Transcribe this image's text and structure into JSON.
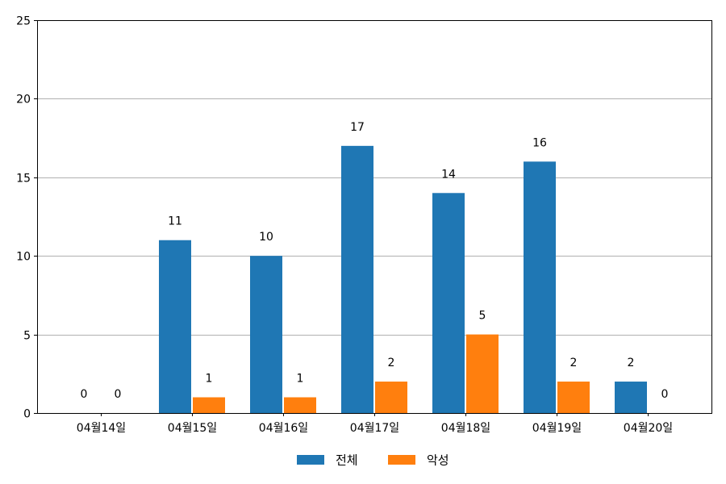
{
  "chart_data": {
    "type": "bar",
    "title": "",
    "xlabel": "",
    "ylabel": "",
    "categories": [
      "04월14일",
      "04월15일",
      "04월16일",
      "04월17일",
      "04월18일",
      "04월19일",
      "04월20일"
    ],
    "series": [
      {
        "name": "전체",
        "color": "#1f77b4",
        "values": [
          0,
          11,
          10,
          17,
          14,
          16,
          2
        ]
      },
      {
        "name": "악성",
        "color": "#ff7f0e",
        "values": [
          0,
          1,
          1,
          2,
          5,
          2,
          0
        ]
      }
    ],
    "ylim": [
      0,
      25
    ],
    "yticks": [
      0,
      5,
      10,
      15,
      20,
      25
    ],
    "grid": "horizontal",
    "data_labels": true,
    "legend": "bottom-center"
  }
}
